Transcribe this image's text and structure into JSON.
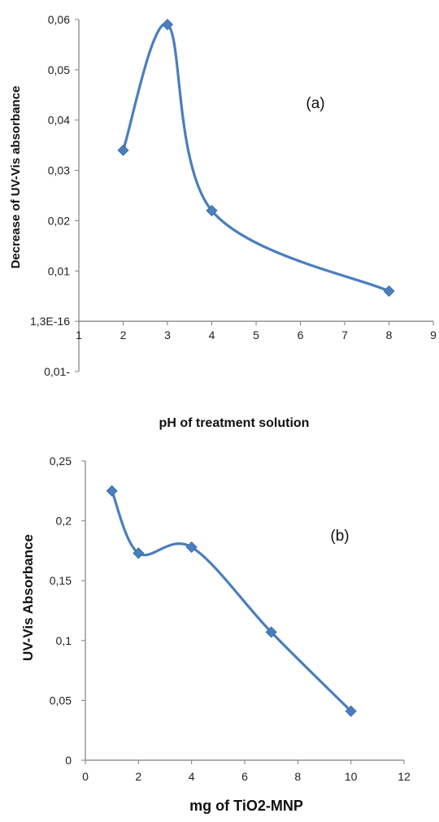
{
  "chart_data": [
    {
      "type": "line",
      "panel_label": "(a)",
      "xlabel": "pH of treatment solution",
      "ylabel": "Decrease of UV-Vis absorbance",
      "x_ticks": [
        "1",
        "2",
        "3",
        "4",
        "5",
        "6",
        "7",
        "8",
        "9"
      ],
      "y_ticks": [
        "0,01-",
        "1,3E-16",
        "0,01",
        "0,02",
        "0,03",
        "0,04",
        "0,05",
        "0,06"
      ],
      "xlim": [
        1,
        9
      ],
      "ylim": [
        -0.01,
        0.06
      ],
      "grid": false,
      "color": "#4a7ebf",
      "series": [
        {
          "x": [
            2,
            3,
            4,
            8
          ],
          "y": [
            0.034,
            0.059,
            0.022,
            0.006
          ]
        }
      ]
    },
    {
      "type": "line",
      "panel_label": "(b)",
      "xlabel": "mg of TiO2-MNP",
      "ylabel": "UV-Vis Absorbance",
      "x_ticks": [
        "0",
        "2",
        "4",
        "6",
        "8",
        "10",
        "12"
      ],
      "y_ticks": [
        "0",
        "0,05",
        "0,1",
        "0,15",
        "0,2",
        "0,25"
      ],
      "xlim": [
        0,
        12
      ],
      "ylim": [
        0,
        0.25
      ],
      "grid": false,
      "color": "#4a7ebf",
      "series": [
        {
          "x": [
            1,
            2,
            4,
            7,
            10
          ],
          "y": [
            0.225,
            0.173,
            0.178,
            0.107,
            0.041
          ]
        }
      ]
    }
  ]
}
